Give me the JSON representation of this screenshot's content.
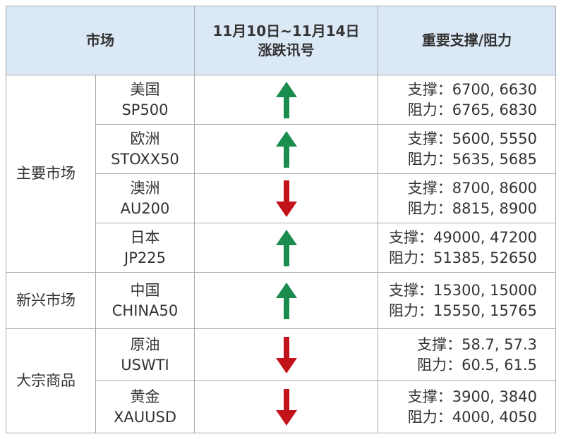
{
  "table": {
    "header": [
      "市场",
      [
        "11月10日~11月14日",
        "涨跌讯号"
      ],
      "重要支撑/阻力"
    ],
    "groups": [
      {
        "name": "主要市场",
        "markets": [
          {
            "name": "美国",
            "code": "SP500",
            "signal": "up",
            "support": "支撑：6700, 6630",
            "resistance": "阻力：6765, 6830"
          },
          {
            "name": "欧洲",
            "code": "STOXX50",
            "signal": "up",
            "support": "支撑：5600, 5550",
            "resistance": "阻力：5635, 5685"
          },
          {
            "name": "澳洲",
            "code": "AU200",
            "signal": "down",
            "support": "支撑：8700, 8600",
            "resistance": "阻力：8815, 8900"
          },
          {
            "name": "日本",
            "code": "JP225",
            "signal": "up",
            "support": "支撑：49000, 47200",
            "resistance": "阻力：51385, 52650"
          }
        ]
      },
      {
        "name": "新兴市场",
        "markets": [
          {
            "name": "中国",
            "code": "CHINA50",
            "signal": "up",
            "support": "支撑：15300, 15000",
            "resistance": "阻力：15550, 15765"
          }
        ]
      },
      {
        "name": "大宗商品",
        "markets": [
          {
            "name": "原油",
            "code": "USWTI",
            "signal": "down",
            "support": "支撑：58.7, 57.3",
            "resistance": "阻力：60.5, 61.5"
          },
          {
            "name": "黄金",
            "code": "XAUUSD",
            "signal": "down",
            "support": "支撑：3900, 3840",
            "resistance": "阻力：4000, 4050"
          }
        ]
      }
    ]
  }
}
